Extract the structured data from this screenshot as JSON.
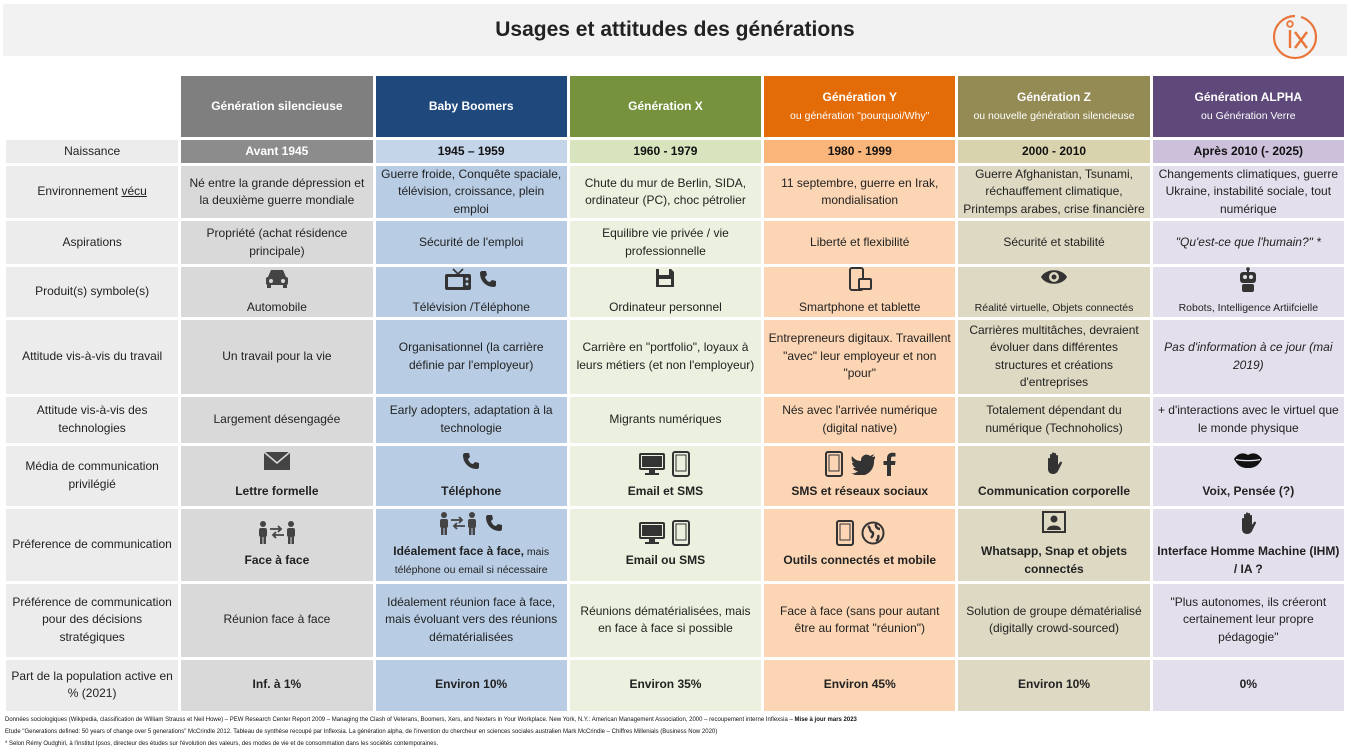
{
  "title": "Usages et attitudes des générations",
  "colors": {
    "silent": "#7f7f7f",
    "boomers": "#1f497d",
    "genx": "#76923c",
    "geny": "#e36c09",
    "genz": "#948a54",
    "alpha": "#5f497a",
    "logo": "#e8753a"
  },
  "generations": [
    {
      "name": "Génération silencieuse",
      "sub": "",
      "period": "Avant 1945"
    },
    {
      "name": "Baby Boomers",
      "sub": "",
      "period": "1945 – 1959"
    },
    {
      "name": "Génération X",
      "sub": "",
      "period": "1960 - 1979"
    },
    {
      "name": "Génération Y",
      "sub": "ou  génération \"pourquoi/Why\"",
      "period": "1980 - 1999"
    },
    {
      "name": "Génération Z",
      "sub": "ou nouvelle génération silencieuse",
      "period": "2000 - 2010"
    },
    {
      "name": "Génération ALPHA",
      "sub": "ou Génération Verre",
      "period": "Après 2010 (- 2025)"
    }
  ],
  "rows": {
    "naissance": {
      "label": "Naissance"
    },
    "environnement": {
      "label_prefix": "Environnement ",
      "label_under": "vécu",
      "cells": [
        "Né entre la grande dépression et la deuxième guerre mondiale",
        "Guerre froide, Conquête spaciale, télévision, croissance, plein emploi",
        "Chute du mur de Berlin, SIDA, ordinateur (PC), choc pétrolier",
        "11 septembre, guerre en Irak, mondialisation",
        "Guerre Afghanistan, Tsunami, réchauffement climatique, Printemps arabes, crise financière",
        "Changements climatiques, guerre Ukraine, instabilité sociale, tout numérique"
      ]
    },
    "aspirations": {
      "label": "Aspirations",
      "cells": [
        "Propriété (achat résidence principale)",
        "Sécurité de l'emploi",
        "Equilibre vie privée / vie professionnelle",
        "Liberté et flexibilité",
        "Sécurité et stabilité",
        "\"Qu'est-ce que l'humain?\" *"
      ]
    },
    "produits": {
      "label": "Produit(s) symbole(s)",
      "cells": [
        {
          "text": "Automobile",
          "icons": [
            "car-icon"
          ]
        },
        {
          "text": "Télévision  /Téléphone",
          "icons": [
            "tv-icon",
            "phone-icon"
          ]
        },
        {
          "text": "Ordinateur personnel",
          "icons": [
            "floppy-disk-icon"
          ]
        },
        {
          "text": "Smartphone et tablette",
          "icons": [
            "smartphone-icon"
          ]
        },
        {
          "text": "Réalité virtuelle, Objets connectés",
          "icons": [
            "eye-icon"
          ]
        },
        {
          "text": "Robots, Intelligence Artiifcielle",
          "icons": [
            "robot-icon"
          ]
        }
      ]
    },
    "travail": {
      "label": "Attitude vis-à-vis du travail",
      "cells": [
        "Un travail pour la vie",
        "Organisationnel (la carrière définie par l'employeur)",
        "Carrière en \"portfolio\", loyaux à leurs métiers (et non l'employeur)",
        "Entrepreneurs digitaux. Travaillent \"avec\" leur employeur et non \"pour\"",
        "Carrières multitâches, devraient évoluer dans différentes structures et créations d'entreprises",
        "Pas d'information à ce jour (mai 2019)"
      ]
    },
    "technologies": {
      "label": "Attitude vis-à-vis des technologies",
      "cells": [
        "Largement désengagée",
        "Early adopters, adaptation à la technologie",
        "Migrants numériques",
        "Nés avec l'arrivée numérique (digital native)",
        "Totalement dépendant du numérique (Technoholics)",
        "+ d'interactions avec le virtuel que le monde physique"
      ]
    },
    "media": {
      "label": "Média de communication privilégié",
      "cells": [
        {
          "text": "Lettre formelle",
          "icons": [
            "envelope-icon"
          ]
        },
        {
          "text": "Téléphone",
          "icons": [
            "phone-icon"
          ]
        },
        {
          "text": "Email et SMS",
          "icons": [
            "desktop-icon",
            "tablet-icon"
          ]
        },
        {
          "text": "SMS et réseaux sociaux",
          "icons": [
            "tablet-icon",
            "twitter-icon",
            "facebook-icon"
          ]
        },
        {
          "text": "Communication corporelle",
          "icons": [
            "hand-icon"
          ]
        },
        {
          "text": "Voix, Pensée (?)",
          "icons": [
            "lips-icon"
          ]
        }
      ]
    },
    "preference": {
      "label": "Préference de communication",
      "cells": [
        {
          "text": "Face à face",
          "small": "",
          "icons": [
            "meeting-icon"
          ]
        },
        {
          "text": "Idéalement face à face,",
          "small": " mais téléphone ou email si nécessaire",
          "icons": [
            "meeting-icon",
            "phone-icon"
          ]
        },
        {
          "text": "Email ou SMS",
          "small": "",
          "icons": [
            "desktop-icon",
            "tablet-icon"
          ]
        },
        {
          "text": "Outils connectés et  mobile",
          "small": "",
          "icons": [
            "tablet-icon",
            "globe-icon"
          ]
        },
        {
          "text": "Whatsapp, Snap et objets connectés",
          "small": "",
          "icons": [
            "portrait-icon"
          ]
        },
        {
          "text": "Interface Homme Machine (IHM) / IA ?",
          "small": "",
          "icons": [
            "hand-icon"
          ]
        }
      ]
    },
    "decisions": {
      "label": "Préférence de communication pour des décisions stratégiques",
      "cells": [
        "Réunion face à face",
        "Idéalement réunion face à face, mais évoluant vers des réunions dématérialisées",
        "Réunions dématérialisées, mais en face à face si possible",
        "Face à face (sans pour autant être au format \"réunion\")",
        "Solution de groupe dématérialisé (digitally crowd-sourced)",
        "\"Plus autonomes, ils créeront certainement leur propre pédagogie\""
      ]
    },
    "population": {
      "label": "Part de la population active en % (2021)",
      "cells": [
        "Inf. à 1%",
        "Environ 10%",
        "Environ 35%",
        "Environ 45%",
        "Environ 10%",
        "0%"
      ]
    }
  },
  "footer": {
    "line1": "Données sociologiques (Wikipedia, classification de William Strauss et Neil Howe) – PEW Research Center Report 2009 – Managing the Clash of Veterans, Boomers, Xers, and Nexters in Your Workplace. New York, N.Y.: American Management Association, 2000 – recoupement interne Inflexsia –",
    "line1_bold": " Mise à jour mars 2023",
    "line2": "Etude \"Generations defined: 50 years of change over 5 generations\" McCrindle 2012. Tableau de synthèse recoupé par Inflexsia. La génération alpha, de l'invention du chercheur en sciences sociales australien Mark McCrindle – Chiffres Millenials (Business Now 2020)",
    "line3": "* Selon Rémy Oudghiri, à l'institut Ipsos, directeur des études sur l'évolution des valeurs, des modes de vie et de consommation dans les sociétés contemporaines."
  }
}
